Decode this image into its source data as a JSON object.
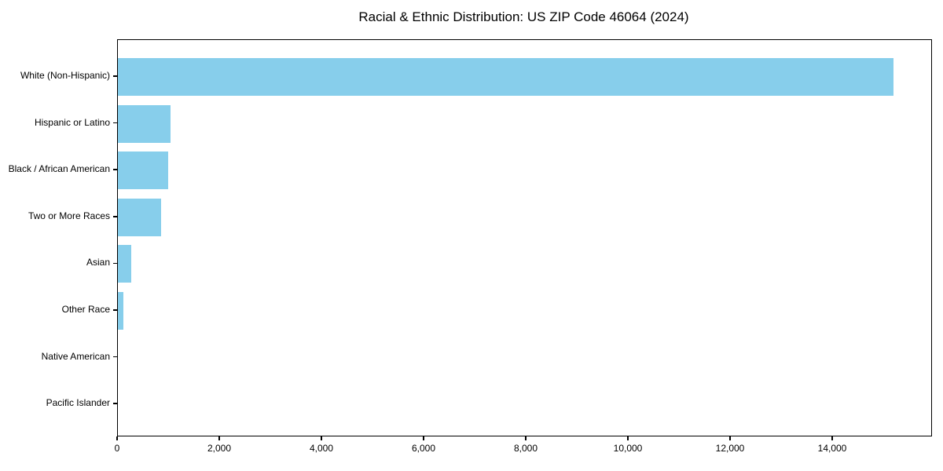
{
  "chart_data": {
    "type": "bar",
    "orientation": "horizontal",
    "title": "Racial & Ethnic Distribution: US ZIP Code 46064 (2024)",
    "categories": [
      "White (Non-Hispanic)",
      "Hispanic or Latino",
      "Black / African American",
      "Two or More Races",
      "Asian",
      "Other Race",
      "Native American",
      "Pacific Islander"
    ],
    "values": [
      15185,
      1025,
      990,
      840,
      255,
      110,
      0,
      0
    ],
    "bar_color": "#87CEEB",
    "axis_color": "#000000",
    "text_color": "#000000",
    "xlabel": "",
    "ylabel": "",
    "xlim": [
      0,
      15923
    ],
    "x_tick_values": [
      0,
      2000,
      4000,
      6000,
      8000,
      10000,
      12000,
      14000
    ],
    "x_tick_labels": [
      "0",
      "2,000",
      "4,000",
      "6,000",
      "8,000",
      "10,000",
      "12,000",
      "14,000"
    ],
    "grid": false,
    "legend": "none"
  }
}
